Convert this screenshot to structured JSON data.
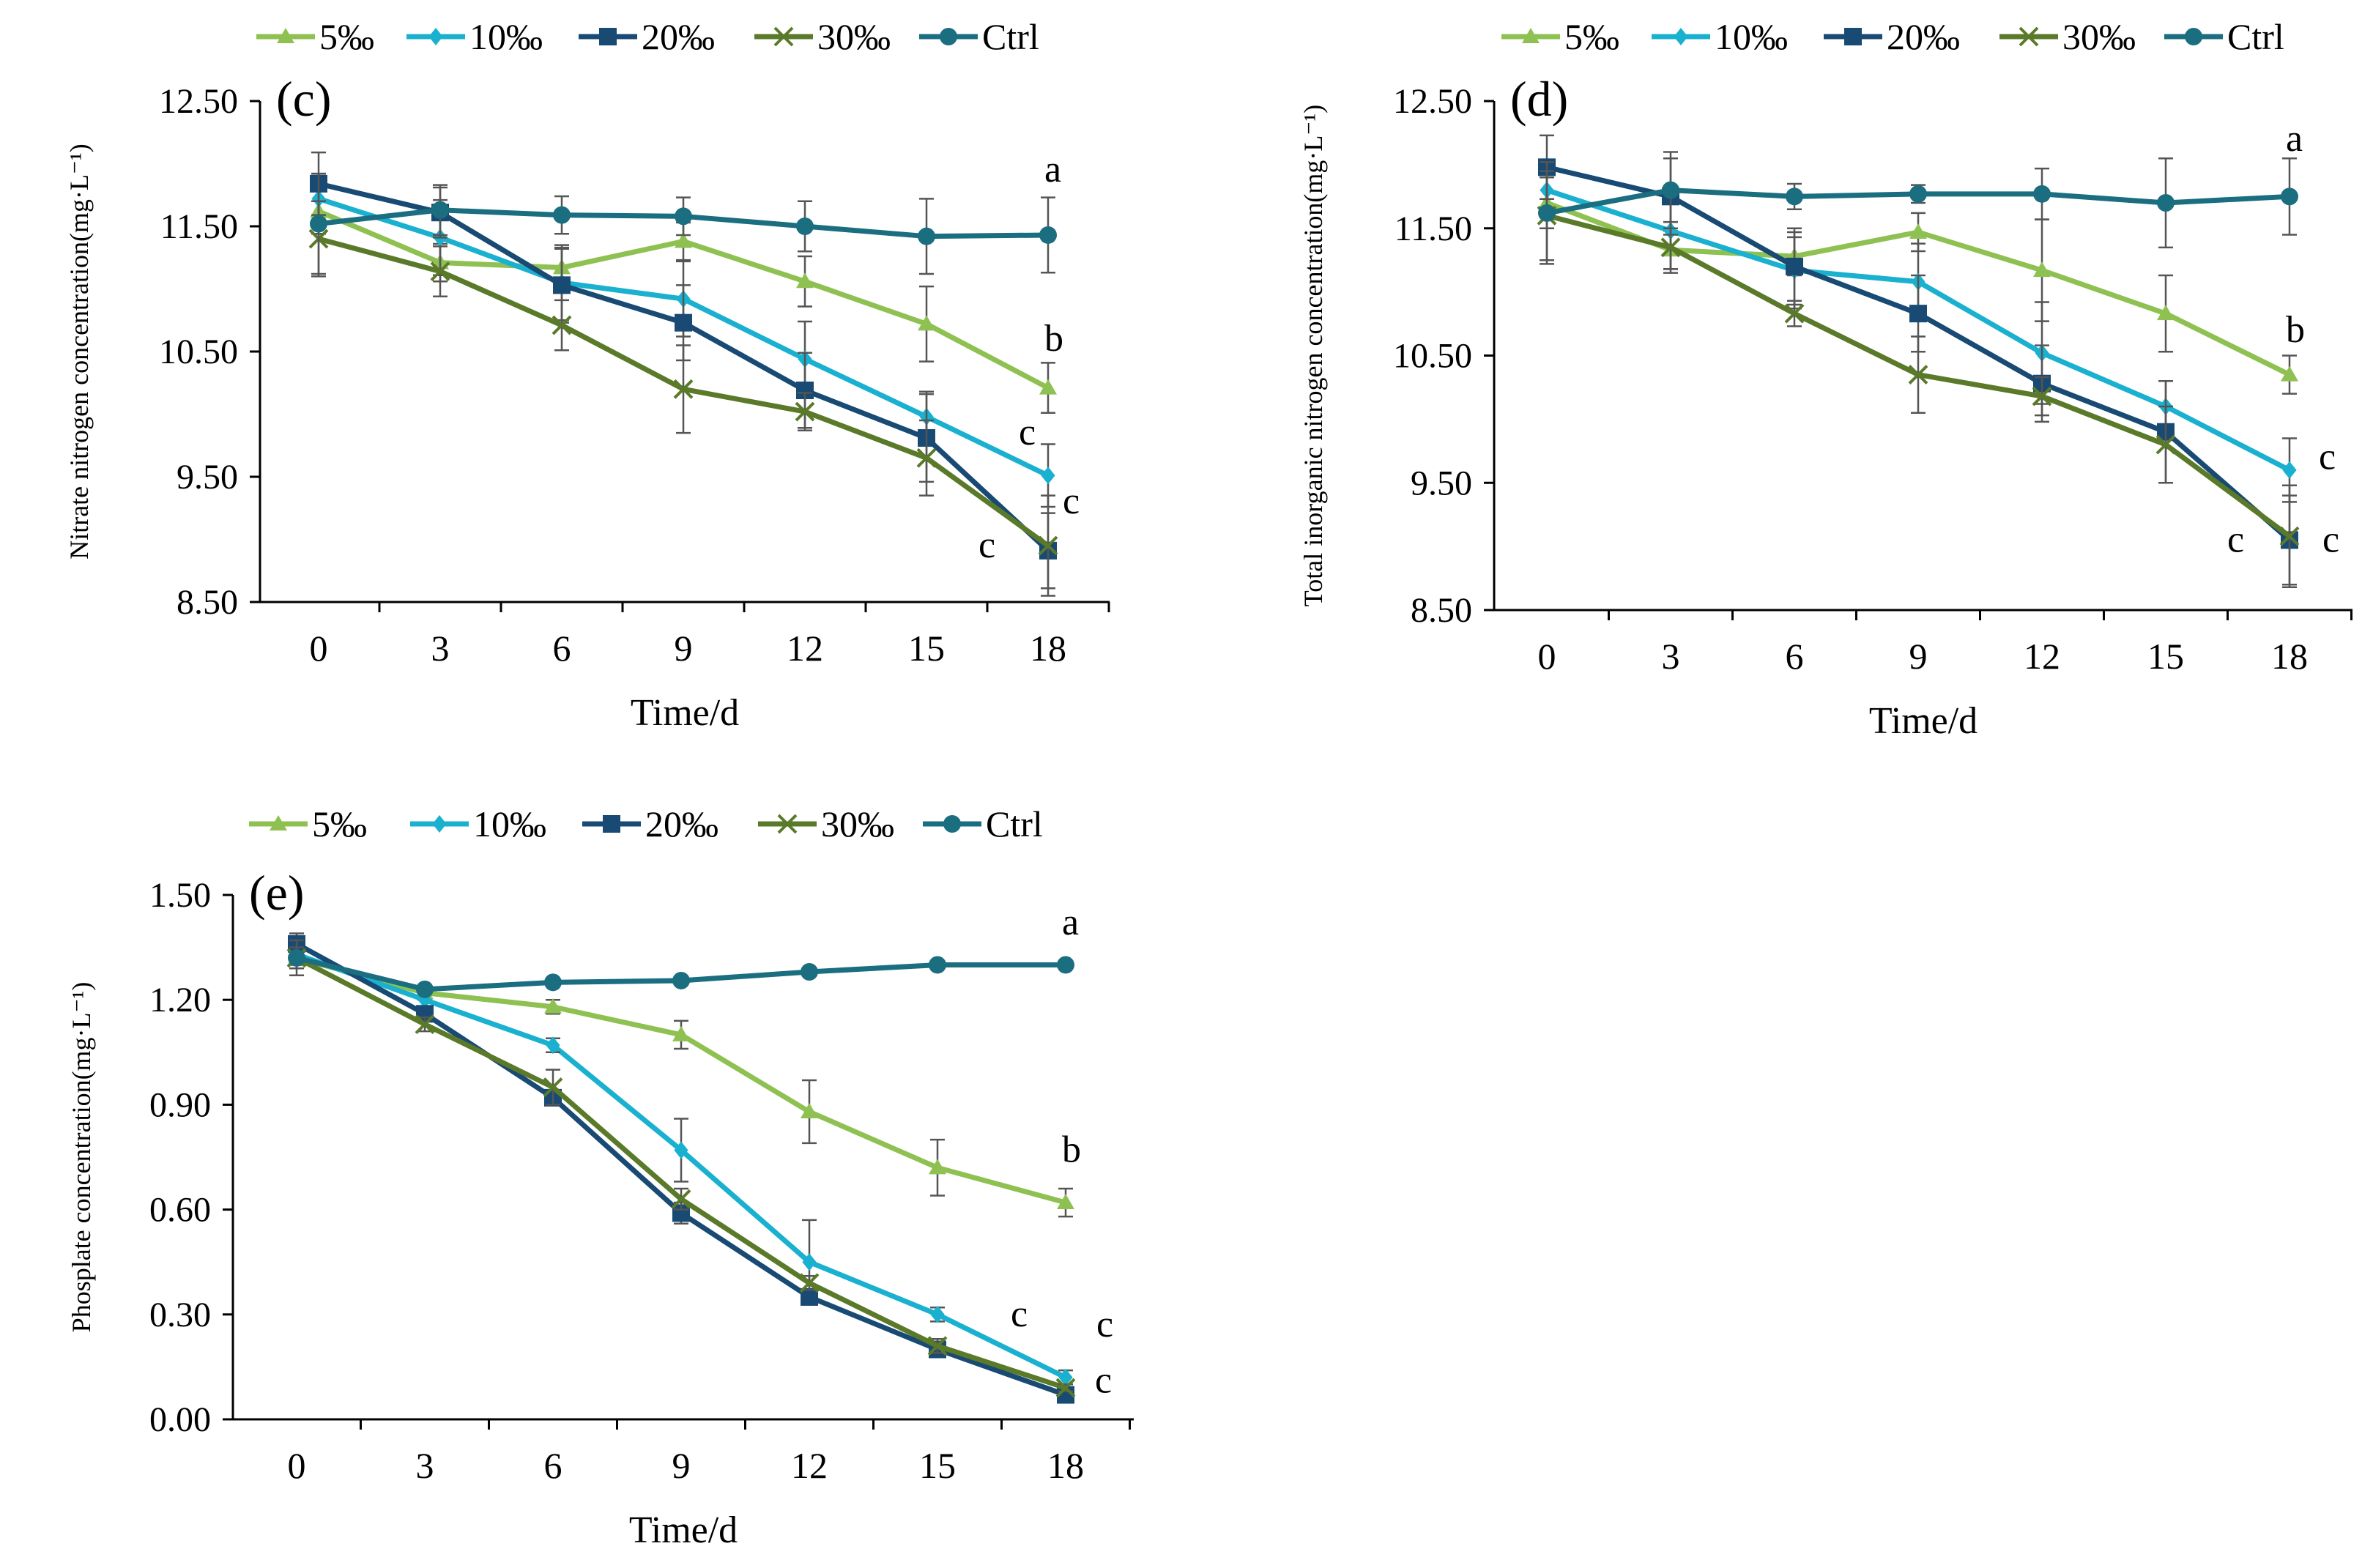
{
  "chart_data": [
    {
      "type": "line",
      "panel_label": "(c)",
      "xlabel": "Time/d",
      "ylabel": "Nitrate nitrogen concentration(mg·L⁻¹)",
      "categories": [
        "0",
        "3",
        "6",
        "9",
        "12",
        "15",
        "18"
      ],
      "y_ticks": [
        "8.50",
        "9.50",
        "10.50",
        "11.50",
        "12.50"
      ],
      "ylim": [
        8.5,
        12.5
      ],
      "legend_position": "top",
      "series": [
        {
          "name": "5‰",
          "color": "#8fc152",
          "marker": "triangle",
          "values": [
            11.62,
            11.21,
            11.17,
            11.38,
            11.06,
            10.72,
            10.21
          ],
          "errors": [
            0.18,
            0.15,
            0.15,
            0.15,
            0.2,
            0.3,
            0.2
          ]
        },
        {
          "name": "10‰",
          "color": "#1ab0cf",
          "marker": "diamond",
          "values": [
            11.72,
            11.41,
            11.05,
            10.92,
            10.44,
            9.98,
            9.51
          ],
          "errors": [
            0.2,
            0.3,
            0.3,
            0.3,
            0.3,
            0.2,
            0.25
          ]
        },
        {
          "name": "20‰",
          "color": "#184a73",
          "marker": "square",
          "values": [
            11.84,
            11.61,
            11.03,
            10.73,
            10.19,
            9.81,
            8.91
          ],
          "errors": [
            0.25,
            0.2,
            0.3,
            0.3,
            0.3,
            0.35,
            0.3
          ]
        },
        {
          "name": "30‰",
          "color": "#5a7a2a",
          "marker": "x",
          "values": [
            11.4,
            11.14,
            10.71,
            10.2,
            10.02,
            9.65,
            8.95
          ],
          "errors": [
            0.3,
            0.2,
            0.2,
            0.35,
            0.15,
            0.3,
            0.4
          ]
        },
        {
          "name": "Ctrl",
          "color": "#1a6e80",
          "marker": "circle",
          "values": [
            11.52,
            11.63,
            11.59,
            11.58,
            11.5,
            11.42,
            11.43
          ],
          "errors": [
            0.4,
            0.2,
            0.15,
            0.15,
            0.2,
            0.3,
            0.3
          ]
        }
      ],
      "annotations": [
        {
          "text": "a",
          "x": "18",
          "y": 11.95
        },
        {
          "text": "b",
          "x": "18",
          "y": 10.6
        },
        {
          "text": "c",
          "x": "18",
          "y": 9.85
        },
        {
          "text": "c",
          "x": "18",
          "y": 9.3
        },
        {
          "text": "c",
          "x": "18",
          "y": 8.95
        }
      ]
    },
    {
      "type": "line",
      "panel_label": "(d)",
      "xlabel": "Time/d",
      "ylabel": "Total inorganic nitrogen concentration(mg·L⁻¹)",
      "categories": [
        "0",
        "3",
        "6",
        "9",
        "12",
        "15",
        "18"
      ],
      "y_ticks": [
        "8.50",
        "9.50",
        "10.50",
        "11.50",
        "12.50"
      ],
      "ylim": [
        8.5,
        12.5
      ],
      "legend_position": "top",
      "series": [
        {
          "name": "5‰",
          "color": "#8fc152",
          "marker": "triangle",
          "values": [
            11.7,
            11.33,
            11.28,
            11.47,
            11.17,
            10.83,
            10.35
          ],
          "errors": [
            0.2,
            0.15,
            0.15,
            0.15,
            0.4,
            0.3,
            0.15
          ]
        },
        {
          "name": "10‰",
          "color": "#1ab0cf",
          "marker": "diamond",
          "values": [
            11.8,
            11.48,
            11.17,
            11.08,
            10.52,
            10.1,
            9.6
          ],
          "errors": [
            0.2,
            0.3,
            0.3,
            0.3,
            0.4,
            0.2,
            0.25
          ]
        },
        {
          "name": "20‰",
          "color": "#184a73",
          "marker": "square",
          "values": [
            11.98,
            11.75,
            11.2,
            10.83,
            10.28,
            9.9,
            9.05
          ],
          "errors": [
            0.25,
            0.3,
            0.3,
            0.3,
            0.3,
            0.4,
            0.35
          ]
        },
        {
          "name": "30‰",
          "color": "#5a7a2a",
          "marker": "x",
          "values": [
            11.6,
            11.35,
            10.83,
            10.35,
            10.18,
            9.8,
            9.08
          ],
          "errors": [
            0.35,
            0.2,
            0.1,
            0.3,
            0.15,
            0.3,
            0.4
          ]
        },
        {
          "name": "Ctrl",
          "color": "#1a6e80",
          "marker": "circle",
          "values": [
            11.62,
            11.8,
            11.75,
            11.77,
            11.77,
            11.7,
            11.75
          ],
          "errors": [
            0.4,
            0.3,
            0.1,
            0.07,
            0.2,
            0.35,
            0.3
          ]
        }
      ],
      "annotations": [
        {
          "text": "a",
          "x": "18",
          "y": 12.2
        },
        {
          "text": "b",
          "x": "18",
          "y": 10.7
        },
        {
          "text": "c",
          "x": "18",
          "y": 9.7
        },
        {
          "text": "c",
          "x": "18",
          "y": 9.05
        },
        {
          "text": "c",
          "x": "18",
          "y": 9.05
        }
      ]
    },
    {
      "type": "line",
      "panel_label": "(e)",
      "xlabel": "Time/d",
      "ylabel": "Phosplate concentration(mg·L⁻¹)",
      "categories": [
        "0",
        "3",
        "6",
        "9",
        "12",
        "15",
        "18"
      ],
      "y_ticks": [
        "0.00",
        "0.30",
        "0.60",
        "0.90",
        "1.20",
        "1.50"
      ],
      "ylim": [
        0,
        1.5
      ],
      "legend_position": "top",
      "series": [
        {
          "name": "5‰",
          "color": "#8fc152",
          "marker": "triangle",
          "values": [
            1.32,
            1.22,
            1.18,
            1.1,
            0.88,
            0.72,
            0.62
          ],
          "errors": [
            0.03,
            0.02,
            0.02,
            0.04,
            0.09,
            0.08,
            0.04
          ]
        },
        {
          "name": "10‰",
          "color": "#1ab0cf",
          "marker": "diamond",
          "values": [
            1.33,
            1.2,
            1.07,
            0.77,
            0.45,
            0.3,
            0.12
          ],
          "errors": [
            0.03,
            0.02,
            0.02,
            0.09,
            0.12,
            0.02,
            0.02
          ]
        },
        {
          "name": "20‰",
          "color": "#184a73",
          "marker": "square",
          "values": [
            1.36,
            1.16,
            0.92,
            0.59,
            0.35,
            0.2,
            0.07
          ],
          "errors": [
            0.03,
            0.02,
            0.02,
            0.03,
            0.02,
            0.02,
            0.01
          ]
        },
        {
          "name": "30‰",
          "color": "#5a7a2a",
          "marker": "x",
          "values": [
            1.32,
            1.13,
            0.95,
            0.63,
            0.39,
            0.21,
            0.09
          ],
          "errors": [
            0.03,
            0.02,
            0.05,
            0.03,
            0.02,
            0.02,
            0.01
          ]
        },
        {
          "name": "Ctrl",
          "color": "#1a6e80",
          "marker": "circle",
          "values": [
            1.32,
            1.23,
            1.25,
            1.255,
            1.28,
            1.3,
            1.3
          ],
          "errors": [
            0.05,
            0.01,
            0.01,
            0.01,
            0.01,
            0.01,
            0.01
          ]
        }
      ],
      "annotations": [
        {
          "text": "a",
          "x": "18",
          "y": 1.42
        },
        {
          "text": "b",
          "x": "18",
          "y": 0.77
        },
        {
          "text": "c",
          "x": "18",
          "y": 0.3
        },
        {
          "text": "c",
          "x": "18",
          "y": 0.27
        },
        {
          "text": "c",
          "x": "18",
          "y": 0.11
        }
      ]
    }
  ]
}
